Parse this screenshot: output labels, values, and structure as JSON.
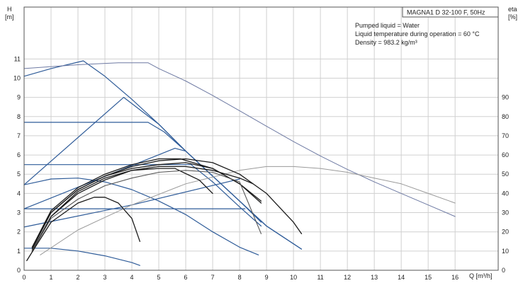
{
  "chart_data": {
    "type": "line",
    "title": "MAGNA1 D 32-100 F, 50Hz",
    "info_lines": [
      "Pumped liquid = Water",
      "Liquid temperature during operation = 60 °C",
      "Density = 983.2 kg/m³"
    ],
    "y_left_label": [
      "H",
      "[m]"
    ],
    "y_right_label": [
      "eta",
      "[%]"
    ],
    "x_axis_label": "Q [m³/h]",
    "x_ticks": [
      "0",
      "1",
      "2",
      "3",
      "4",
      "5",
      "6",
      "7",
      "8",
      "9",
      "10",
      "11",
      "12",
      "13",
      "14",
      "15",
      "16"
    ],
    "y_left_ticks": [
      "0",
      "1",
      "2",
      "3",
      "4",
      "5",
      "6",
      "7",
      "8",
      "9",
      "10",
      "11"
    ],
    "y_right_ticks": [
      "0",
      "10",
      "20",
      "30",
      "40",
      "50",
      "60",
      "70",
      "80",
      "90"
    ],
    "xlim": [
      0,
      17.6
    ],
    "ylim_left": [
      0,
      13.7
    ],
    "ylim_right": [
      0,
      137
    ],
    "grid": true,
    "colors": {
      "pump_curve": "#2f5c99",
      "power_curve": "#2f5c99",
      "twin_curve": "#6e7aa3",
      "twin_eff": "#9a9a9a",
      "efficiency": "#1a1a1a",
      "efficiency_mid": "#555555",
      "grid": "#d0d0d0",
      "axis": "#555555"
    },
    "series": [
      {
        "style": "pump_curve",
        "points": [
          [
            0,
            10.1
          ],
          [
            1.0,
            10.5
          ],
          [
            2.2,
            10.9
          ],
          [
            3.0,
            10.1
          ],
          [
            4.0,
            8.9
          ],
          [
            5.0,
            7.6
          ],
          [
            6.0,
            6.2
          ],
          [
            7.0,
            4.9
          ],
          [
            8.0,
            3.6
          ],
          [
            9.0,
            2.3
          ],
          [
            10.3,
            1.1
          ]
        ]
      },
      {
        "style": "pump_curve",
        "points": [
          [
            0,
            7.7
          ],
          [
            4.6,
            7.7
          ],
          [
            5.2,
            7.2
          ],
          [
            6.0,
            6.2
          ],
          [
            7.0,
            4.9
          ],
          [
            8.0,
            3.6
          ],
          [
            9.0,
            2.3
          ],
          [
            10.3,
            1.1
          ]
        ]
      },
      {
        "style": "pump_curve",
        "points": [
          [
            0,
            4.45
          ],
          [
            3.7,
            9.0
          ],
          [
            5.0,
            7.6
          ],
          [
            6.0,
            6.2
          ],
          [
            7.0,
            4.9
          ],
          [
            8.0,
            3.6
          ],
          [
            8.8,
            2.5
          ]
        ]
      },
      {
        "style": "pump_curve",
        "points": [
          [
            0,
            5.5
          ],
          [
            6.2,
            5.5
          ],
          [
            7.0,
            4.6
          ],
          [
            8.0,
            3.3
          ],
          [
            8.8,
            2.3
          ]
        ]
      },
      {
        "style": "pump_curve",
        "points": [
          [
            0,
            3.2
          ],
          [
            5.6,
            6.35
          ],
          [
            6.0,
            6.2
          ],
          [
            7.0,
            4.9
          ]
        ]
      },
      {
        "style": "pump_curve",
        "points": [
          [
            0,
            3.2
          ],
          [
            8.2,
            3.2
          ]
        ]
      },
      {
        "style": "pump_curve",
        "points": [
          [
            0,
            2.25
          ],
          [
            4.0,
            3.4
          ],
          [
            8.0,
            4.75
          ]
        ]
      },
      {
        "style": "pump_curve",
        "points": [
          [
            0,
            4.45
          ],
          [
            1.0,
            4.75
          ],
          [
            2.0,
            4.8
          ],
          [
            3.0,
            4.6
          ],
          [
            4.0,
            4.2
          ],
          [
            5.0,
            3.6
          ],
          [
            6.0,
            2.9
          ],
          [
            7.0,
            2.0
          ],
          [
            8.0,
            1.2
          ],
          [
            8.7,
            0.8
          ]
        ]
      },
      {
        "style": "pump_curve",
        "points": [
          [
            0,
            1.15
          ],
          [
            1.0,
            1.15
          ],
          [
            2.0,
            1.0
          ],
          [
            3.0,
            0.75
          ],
          [
            4.0,
            0.4
          ],
          [
            4.3,
            0.25
          ]
        ]
      },
      {
        "style": "twin_curve",
        "points": [
          [
            0,
            10.5
          ],
          [
            2.0,
            10.7
          ],
          [
            3.5,
            10.8
          ],
          [
            4.6,
            10.8
          ],
          [
            5.0,
            10.5
          ],
          [
            6.0,
            9.85
          ],
          [
            7.0,
            9.1
          ],
          [
            8.0,
            8.3
          ],
          [
            9.0,
            7.5
          ],
          [
            10.0,
            6.7
          ],
          [
            11.0,
            5.95
          ],
          [
            12.0,
            5.25
          ],
          [
            13.0,
            4.6
          ],
          [
            14.0,
            4.0
          ],
          [
            15.0,
            3.4
          ],
          [
            16.0,
            2.8
          ]
        ]
      },
      {
        "style": "twin_eff",
        "points": [
          [
            0.6,
            8
          ],
          [
            2.0,
            21
          ],
          [
            4.0,
            34
          ],
          [
            6.0,
            45
          ],
          [
            8.0,
            52
          ],
          [
            9.0,
            54
          ],
          [
            10.0,
            54
          ],
          [
            11.0,
            53
          ],
          [
            12.0,
            51
          ],
          [
            13.0,
            48
          ],
          [
            14.0,
            45
          ],
          [
            15.0,
            40
          ],
          [
            16.0,
            35
          ]
        ]
      },
      {
        "style": "efficiency",
        "points": [
          [
            0.3,
            12
          ],
          [
            1.0,
            30
          ],
          [
            2.0,
            42
          ],
          [
            3.0,
            49
          ],
          [
            4.0,
            54
          ],
          [
            5.0,
            57
          ],
          [
            6.0,
            58
          ],
          [
            7.0,
            56
          ],
          [
            8.0,
            50
          ],
          [
            9.0,
            40
          ],
          [
            10.0,
            25
          ],
          [
            10.3,
            19
          ]
        ]
      },
      {
        "style": "efficiency",
        "points": [
          [
            0.3,
            12
          ],
          [
            1.0,
            31
          ],
          [
            2.0,
            43
          ],
          [
            3.0,
            50
          ],
          [
            4.0,
            55
          ],
          [
            5.0,
            58
          ],
          [
            5.8,
            58
          ],
          [
            7.0,
            53
          ],
          [
            8.0,
            45
          ],
          [
            8.8,
            35
          ]
        ]
      },
      {
        "style": "efficiency",
        "points": [
          [
            0.3,
            11
          ],
          [
            1.0,
            30
          ],
          [
            2.0,
            42
          ],
          [
            3.0,
            49
          ],
          [
            4.0,
            53
          ],
          [
            5.0,
            55
          ],
          [
            6.0,
            56
          ],
          [
            7.0,
            53
          ],
          [
            8.0,
            45
          ],
          [
            8.8,
            36
          ]
        ]
      },
      {
        "style": "efficiency",
        "points": [
          [
            0.3,
            10
          ],
          [
            1.0,
            28
          ],
          [
            2.0,
            40
          ],
          [
            3.0,
            47
          ],
          [
            4.0,
            52
          ],
          [
            5.0,
            54
          ],
          [
            6.0,
            54
          ],
          [
            7.0,
            52
          ],
          [
            8.0,
            48
          ],
          [
            8.5,
            45
          ]
        ]
      },
      {
        "style": "efficiency",
        "points": [
          [
            0.3,
            10
          ],
          [
            1.0,
            28
          ],
          [
            2.0,
            41
          ],
          [
            3.0,
            48
          ],
          [
            4.0,
            52
          ],
          [
            5.0,
            53
          ],
          [
            5.6,
            53
          ],
          [
            6.5,
            47
          ],
          [
            7.0,
            40
          ]
        ]
      },
      {
        "style": "efficiency_mid",
        "points": [
          [
            0.3,
            10
          ],
          [
            1.0,
            27
          ],
          [
            2.0,
            37
          ],
          [
            3.0,
            44
          ],
          [
            4.0,
            48
          ],
          [
            5.0,
            51
          ],
          [
            6.0,
            52
          ],
          [
            7.0,
            51
          ],
          [
            8.0,
            46
          ],
          [
            8.8,
            19
          ]
        ]
      },
      {
        "style": "efficiency",
        "points": [
          [
            0.1,
            5
          ],
          [
            0.5,
            14
          ],
          [
            1.0,
            25
          ],
          [
            2.0,
            35
          ],
          [
            2.6,
            38
          ],
          [
            3.0,
            38
          ],
          [
            3.5,
            35
          ],
          [
            4.0,
            27
          ],
          [
            4.3,
            15
          ]
        ]
      }
    ]
  }
}
